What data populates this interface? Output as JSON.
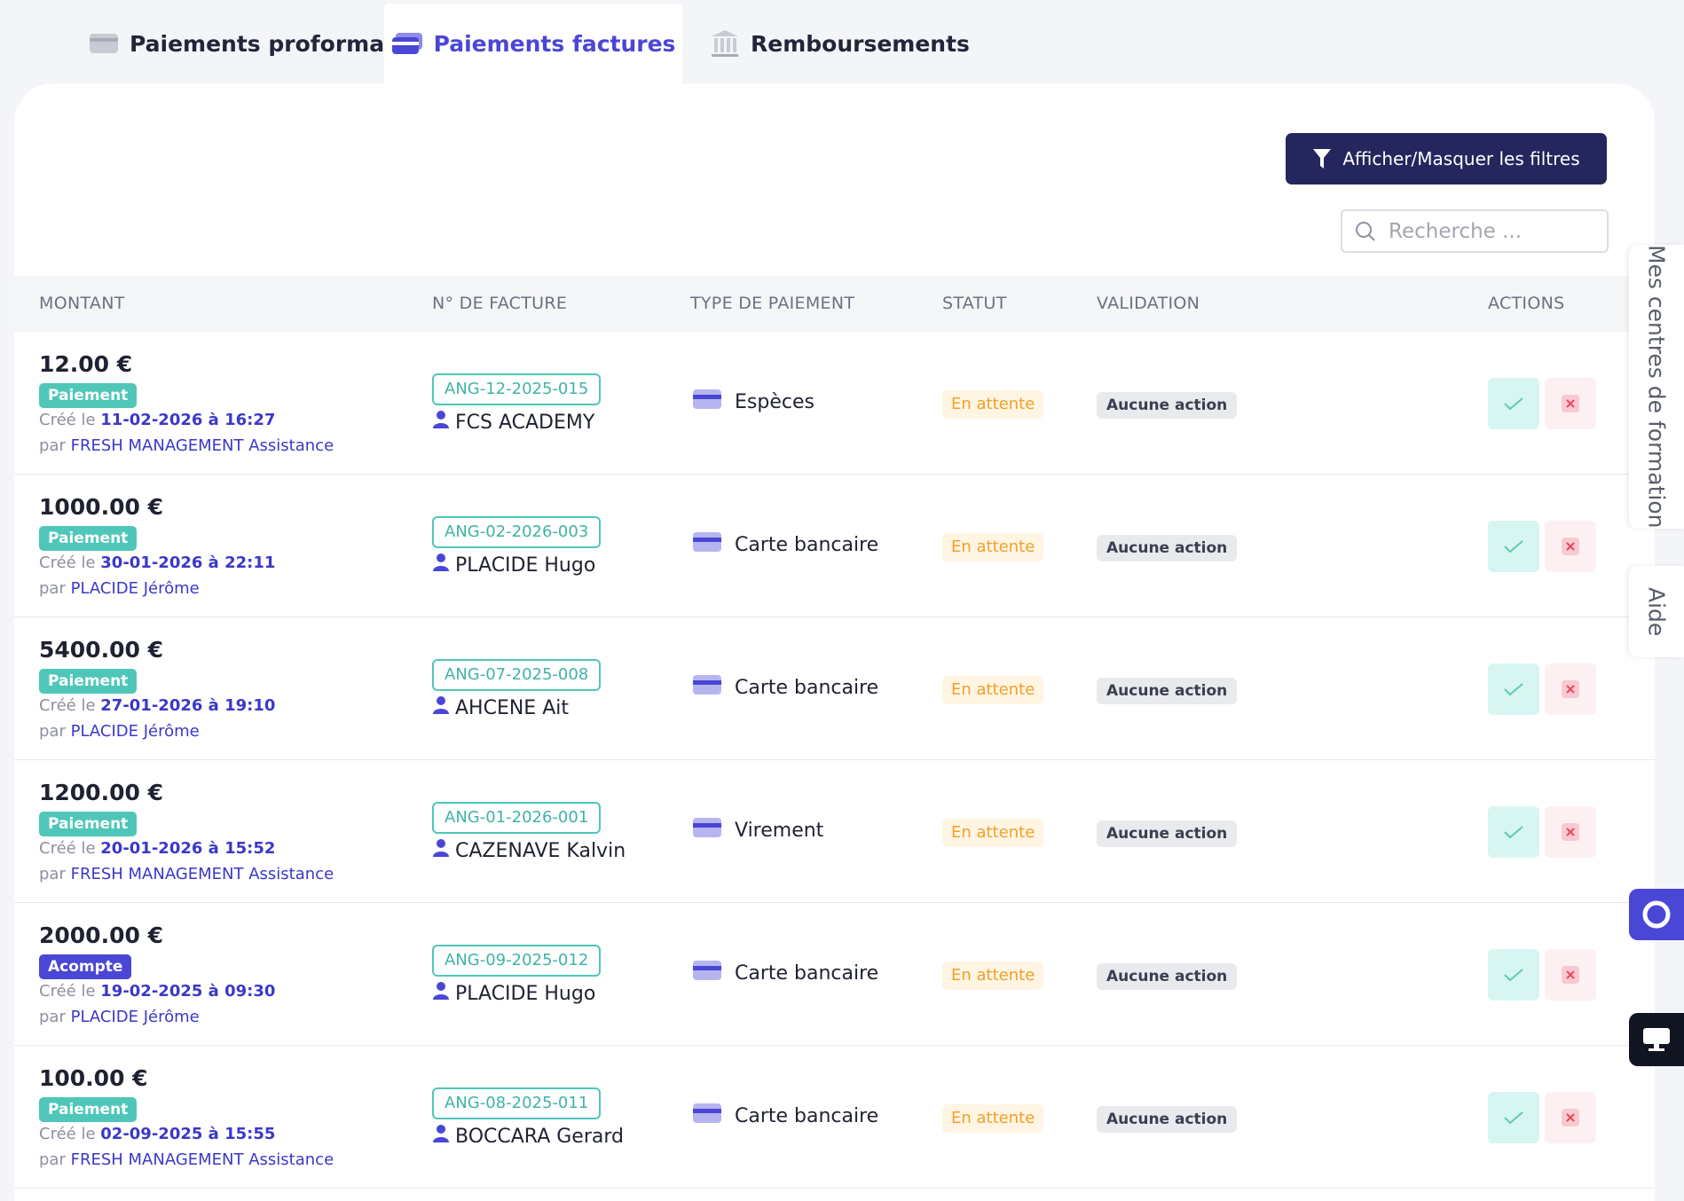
{
  "tabs": [
    "Paiements proformas",
    "Paiements factures",
    "Remboursements"
  ],
  "filter_button": "Afficher/Masquer les filtres",
  "search_placeholder": "Recherche ...",
  "table": {
    "headers": [
      "MONTANT",
      "N° DE FACTURE",
      "TYPE DE PAIEMENT",
      "STATUT",
      "VALIDATION",
      "ACTIONS"
    ],
    "rows": [
      {
        "amount": "12.00 €",
        "kind": "Paiement",
        "created_prefix": "Créé le",
        "date": "11-02-2026 à 16:27",
        "by_prefix": "par",
        "by": "FRESH MANAGEMENT Assistance",
        "invoice": "ANG-12-2025-015",
        "client": "FCS ACADEMY",
        "payment_type": "Espèces",
        "status": "En attente",
        "validation": "Aucune action"
      },
      {
        "amount": "1000.00 €",
        "kind": "Paiement",
        "created_prefix": "Créé le",
        "date": "30-01-2026 à 22:11",
        "by_prefix": "par",
        "by": "PLACIDE Jérôme",
        "invoice": "ANG-02-2026-003",
        "client": "PLACIDE Hugo",
        "payment_type": "Carte bancaire",
        "status": "En attente",
        "validation": "Aucune action"
      },
      {
        "amount": "5400.00 €",
        "kind": "Paiement",
        "created_prefix": "Créé le",
        "date": "27-01-2026 à 19:10",
        "by_prefix": "par",
        "by": "PLACIDE Jérôme",
        "invoice": "ANG-07-2025-008",
        "client": "AHCENE Ait",
        "payment_type": "Carte bancaire",
        "status": "En attente",
        "validation": "Aucune action"
      },
      {
        "amount": "1200.00 €",
        "kind": "Paiement",
        "created_prefix": "Créé le",
        "date": "20-01-2026 à 15:52",
        "by_prefix": "par",
        "by": "FRESH MANAGEMENT Assistance",
        "invoice": "ANG-01-2026-001",
        "client": "CAZENAVE Kalvin",
        "payment_type": "Virement",
        "status": "En attente",
        "validation": "Aucune action"
      },
      {
        "amount": "2000.00 €",
        "kind": "Acompte",
        "created_prefix": "Créé le",
        "date": "19-02-2025 à 09:30",
        "by_prefix": "par",
        "by": "PLACIDE Jérôme",
        "invoice": "ANG-09-2025-012",
        "client": "PLACIDE Hugo",
        "payment_type": "Carte bancaire",
        "status": "En attente",
        "validation": "Aucune action"
      },
      {
        "amount": "100.00 €",
        "kind": "Paiement",
        "created_prefix": "Créé le",
        "date": "02-09-2025 à 15:55",
        "by_prefix": "par",
        "by": "FRESH MANAGEMENT Assistance",
        "invoice": "ANG-08-2025-011",
        "client": "BOCCARA Gerard",
        "payment_type": "Carte bancaire",
        "status": "En attente",
        "validation": "Aucune action"
      }
    ]
  },
  "side_tabs": [
    "Mes centres de formation",
    "Aide"
  ]
}
